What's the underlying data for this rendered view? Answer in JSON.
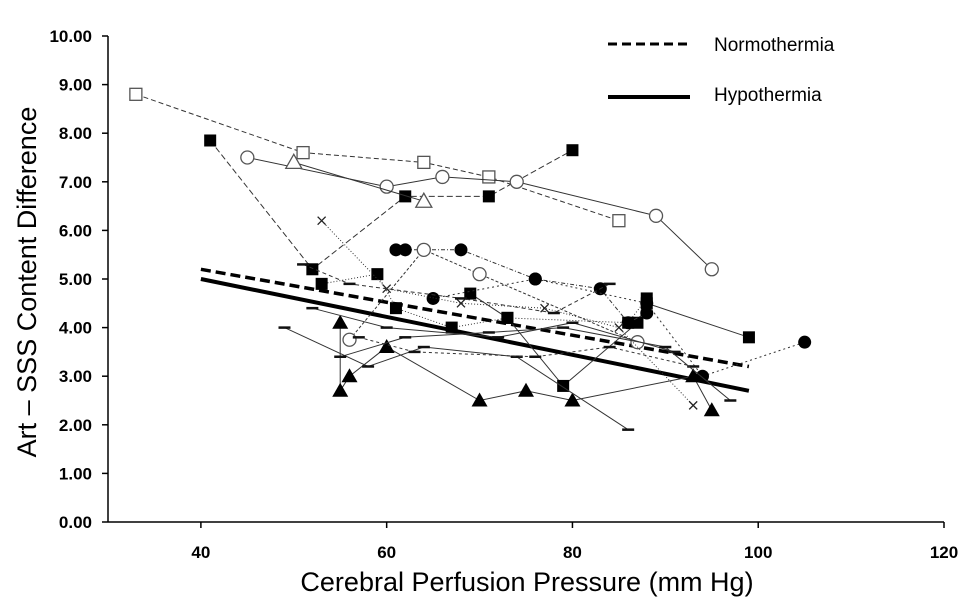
{
  "chart_data": {
    "type": "scatter",
    "title": "",
    "xlabel": "Cerebral Perfusion Pressure (mm Hg)",
    "ylabel": "Art – SSS Content Difference",
    "xlim": [
      30,
      120
    ],
    "ylim": [
      0,
      10
    ],
    "x_ticks": [
      40,
      60,
      80,
      100,
      120
    ],
    "x_tick_labels": [
      "40",
      "60",
      "80",
      "100",
      "120"
    ],
    "y_ticks": [
      0,
      1,
      2,
      3,
      4,
      5,
      6,
      7,
      8,
      9,
      10
    ],
    "y_tick_labels": [
      "0.00",
      "1.00",
      "2.00",
      "3.00",
      "4.00",
      "5.00",
      "6.00",
      "7.00",
      "8.00",
      "9.00",
      "10.00"
    ],
    "grid": false,
    "legend_position": "top-right",
    "series": [
      {
        "name": "Normothermia",
        "style": "regression-dashed",
        "x": [
          40,
          99
        ],
        "y": [
          5.2,
          3.2
        ]
      },
      {
        "name": "Hypothermia",
        "style": "regression-solid",
        "x": [
          40,
          99
        ],
        "y": [
          5.0,
          2.7
        ]
      },
      {
        "marker": "filled-square",
        "x": [
          41,
          52,
          62,
          71,
          80
        ],
        "y": [
          7.85,
          5.2,
          6.7,
          6.7,
          7.65
        ]
      },
      {
        "marker": "filled-square",
        "x": [
          53,
          59,
          61,
          67,
          73,
          86,
          88
        ],
        "y": [
          4.9,
          5.1,
          4.4,
          4.0,
          4.2,
          4.1,
          4.6
        ]
      },
      {
        "marker": "filled-square",
        "x": [
          69,
          73,
          79,
          87,
          88,
          99
        ],
        "y": [
          4.7,
          4.2,
          2.8,
          4.1,
          4.5,
          3.8
        ]
      },
      {
        "marker": "filled-circle",
        "x": [
          61,
          62,
          68,
          76,
          83,
          86,
          88
        ],
        "y": [
          5.6,
          5.6,
          5.6,
          5.0,
          4.8,
          4.1,
          4.3
        ]
      },
      {
        "marker": "filled-circle",
        "x": [
          65,
          76,
          88,
          94,
          105
        ],
        "y": [
          4.6,
          5.0,
          4.5,
          3.0,
          3.7
        ]
      },
      {
        "marker": "filled-triangle",
        "x": [
          55,
          55,
          56,
          60,
          70,
          75,
          80,
          93,
          95
        ],
        "y": [
          4.1,
          2.7,
          3.0,
          3.6,
          2.5,
          2.7,
          2.5,
          3.0,
          2.3
        ]
      },
      {
        "marker": "open-square",
        "x": [
          33,
          51,
          64,
          71,
          85
        ],
        "y": [
          8.8,
          7.6,
          7.4,
          7.1,
          6.2
        ]
      },
      {
        "marker": "open-circle",
        "x": [
          45,
          60,
          66,
          74,
          89,
          95
        ],
        "y": [
          7.5,
          6.9,
          7.1,
          7.0,
          6.3,
          5.2
        ]
      },
      {
        "marker": "open-circle",
        "x": [
          56,
          64,
          70,
          87
        ],
        "y": [
          3.75,
          5.6,
          5.1,
          3.7
        ]
      },
      {
        "marker": "open-triangle",
        "x": [
          50,
          64
        ],
        "y": [
          7.4,
          6.6
        ]
      },
      {
        "marker": "cross",
        "x": [
          53,
          60,
          68,
          77,
          85,
          93
        ],
        "y": [
          6.2,
          4.8,
          4.5,
          4.4,
          4.0,
          2.4
        ]
      },
      {
        "marker": "dash",
        "x": [
          52,
          60,
          72,
          80,
          91
        ],
        "y": [
          4.4,
          4.0,
          3.8,
          4.1,
          3.5
        ]
      },
      {
        "marker": "dash",
        "x": [
          51,
          56,
          68,
          78,
          84
        ],
        "y": [
          5.3,
          4.9,
          4.6,
          4.3,
          4.9
        ]
      },
      {
        "marker": "dash",
        "x": [
          49,
          58,
          64,
          74,
          86
        ],
        "y": [
          4.0,
          3.2,
          3.6,
          3.4,
          1.9
        ]
      },
      {
        "marker": "dash",
        "x": [
          57,
          63,
          76,
          84,
          93
        ],
        "y": [
          3.8,
          3.5,
          3.4,
          3.6,
          3.2
        ]
      },
      {
        "marker": "dash",
        "x": [
          55,
          62,
          71,
          79,
          90,
          97
        ],
        "y": [
          3.4,
          3.8,
          3.9,
          4.0,
          3.6,
          2.5
        ]
      }
    ]
  }
}
